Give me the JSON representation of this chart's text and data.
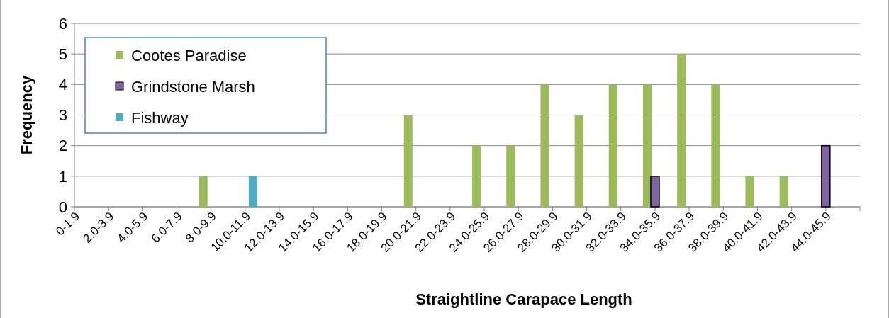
{
  "chart_data": {
    "type": "bar",
    "xlabel": "Straightline Carapace Length",
    "ylabel": "Frequency",
    "categories": [
      "0-1.9",
      "2.0-3.9",
      "4.0-5.9",
      "6.0-7.9",
      "8.0-9.9",
      "10.0-11.9",
      "12.0-13.9",
      "14.0-15.9",
      "16.0-17.9",
      "18.0-19.9",
      "20.0-21.9",
      "22.0-23.9",
      "24.0-25.9",
      "26.0-27.9",
      "28.0-29.9",
      "30.0-31.9",
      "32.0-33.9",
      "34.0-35.9",
      "36.0-37.9",
      "38.0-39.9",
      "40.0-41.9",
      "42.0-43.9",
      "44.0-45.9"
    ],
    "series": [
      {
        "name": "Cootes Paradise",
        "color": "#9bbb59",
        "values": [
          0,
          0,
          0,
          0,
          1,
          0,
          0,
          0,
          0,
          0,
          3,
          0,
          2,
          2,
          4,
          3,
          4,
          4,
          5,
          4,
          1,
          1,
          0
        ]
      },
      {
        "name": "Grindstone Marsh",
        "color": "#8064a2",
        "values": [
          0,
          0,
          0,
          0,
          0,
          0,
          0,
          0,
          0,
          0,
          0,
          0,
          0,
          0,
          0,
          0,
          0,
          1,
          0,
          0,
          0,
          0,
          2
        ]
      },
      {
        "name": "Fishway",
        "color": "#4bacc6",
        "values": [
          0,
          0,
          0,
          0,
          0,
          1,
          0,
          0,
          0,
          0,
          0,
          0,
          0,
          0,
          0,
          0,
          0,
          0,
          0,
          0,
          0,
          0,
          0
        ]
      }
    ],
    "ylim": [
      0,
      6
    ],
    "yticks": [
      0,
      1,
      2,
      3,
      4,
      5,
      6
    ],
    "grid": "y",
    "legend": "top left"
  }
}
